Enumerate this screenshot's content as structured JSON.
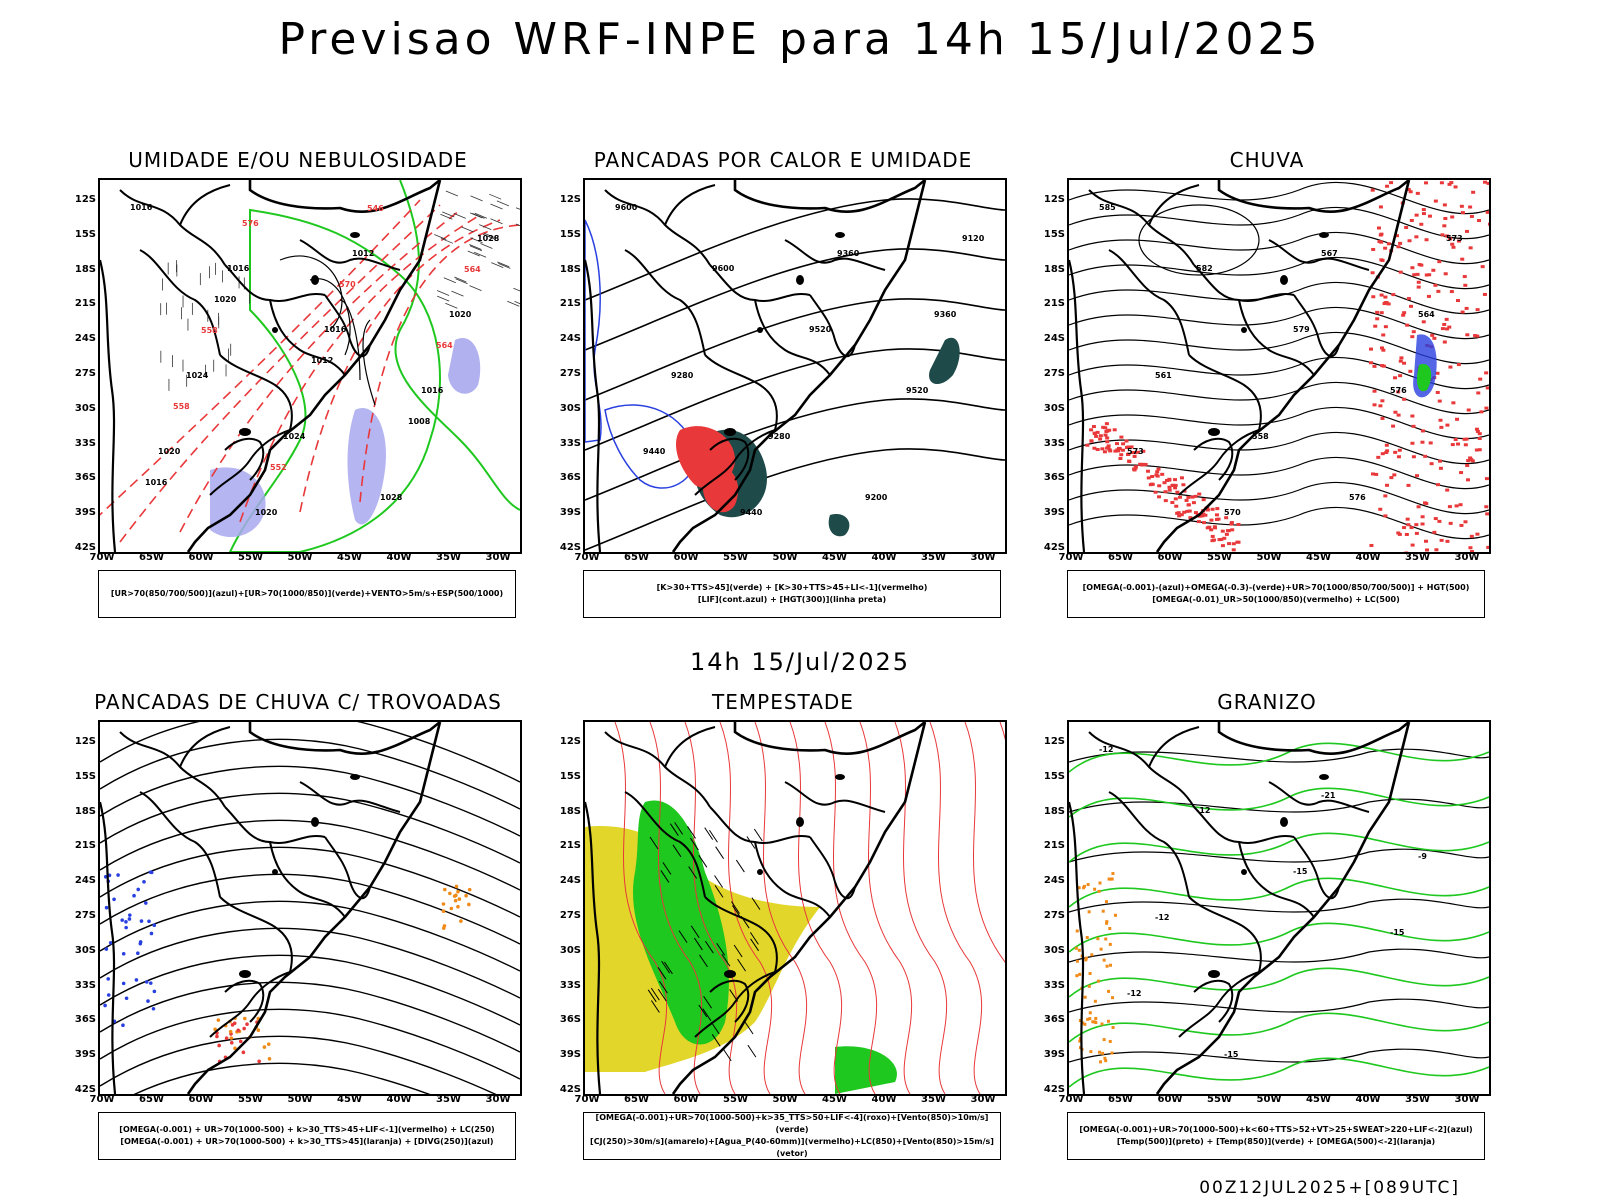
{
  "title": "Previsao WRF-INPE  para 14h 15/Jul/2025",
  "mid_date": "14h 15/Jul/2025",
  "footer": "00Z12JUL2025+[089UTC]",
  "axes": {
    "lat": [
      "12S",
      "15S",
      "18S",
      "21S",
      "24S",
      "27S",
      "30S",
      "33S",
      "36S",
      "39S",
      "42S"
    ],
    "lon": [
      "70W",
      "65W",
      "60W",
      "55W",
      "50W",
      "45W",
      "40W",
      "35W",
      "30W"
    ]
  },
  "colors": {
    "red": "#e8383a",
    "green": "#1ec81e",
    "blue": "#2940e0",
    "lavender": "#a8a8ee",
    "dark_teal": "#1f4a4a",
    "yellow": "#e2d62a",
    "orange": "#f08a18",
    "black": "#000000"
  },
  "panels": [
    {
      "title": "UMIDADE E/OU NEBULOSIDADE",
      "legend1": "[UR>70(850/700/500)](azul)+[UR>70(1000/850)](verde)+VENTO>5m/s+ESP(500/1000)",
      "legend2": "",
      "labels": [
        "1016",
        "1016",
        "1016",
        "1016",
        "1020",
        "1020",
        "1012",
        "1020",
        "1024",
        "1024",
        "1028",
        "1028",
        "1020",
        "1012",
        "1008",
        "1016",
        "576",
        "570",
        "564",
        "558",
        "552",
        "546",
        "564",
        "558"
      ]
    },
    {
      "title": "PANCADAS POR CALOR E UMIDADE",
      "legend1": "[K>30+TTS>45](verde) + [K>30+TTS>45+LI<-1](vermelho)",
      "legend2": "[LIF](cont.azul) + [HGT(300)](linha preta)",
      "labels": [
        "9600",
        "9600",
        "9520",
        "9520",
        "9440",
        "9440",
        "9360",
        "9360",
        "9280",
        "9280",
        "9200",
        "9120"
      ]
    },
    {
      "title": "CHUVA",
      "legend1": "[OMEGA(-0.001)-(azul)+OMEGA(-0.3)-(verde)+UR>70(1000/850/700/500)] + HGT(500)",
      "legend2": "[OMEGA(-0.01)_UR>50(1000/850)(vermelho) + LC(500)",
      "labels": [
        "585",
        "582",
        "579",
        "576",
        "573",
        "570",
        "567",
        "564",
        "561",
        "558",
        "576",
        "573"
      ]
    },
    {
      "title": "PANCADAS DE CHUVA C/ TROVOADAS",
      "legend1": "[OMEGA(-0.001) + UR>70(1000-500) + k>30_TTS>45+LIF<-1](vermelho) + LC(250)",
      "legend2": "[OMEGA(-0.001) + UR>70(1000-500) + k>30_TTS>45](laranja) + [DIVG(250)](azul)",
      "labels": []
    },
    {
      "title": "TEMPESTADE",
      "legend1": "[OMEGA(-0.001)+UR>70(1000-500)+k>35_TTS>50+LIF<-4](roxo)+[Vento(850)>10m/s](verde)",
      "legend2": "[CJ(250)>30m/s](amarelo)+[Agua_P(40-60mm)](vermelho)+LC(850)+[Vento(850)>15m/s](vetor)",
      "labels": []
    },
    {
      "title": "GRANIZO",
      "legend1": "[OMEGA(-0.001)+UR>70(1000-500)+k<60+TTS>52+VT>25+SWEAT>220+LIF<-2](azul)",
      "legend2": "[Temp(500)](preto) + [Temp(850)](verde) + [OMEGA(500)<-2](laranja)",
      "labels": [
        "-12",
        "-12",
        "-15",
        "-15",
        "-12",
        "-15",
        "-21",
        "-9",
        "-12"
      ]
    }
  ]
}
